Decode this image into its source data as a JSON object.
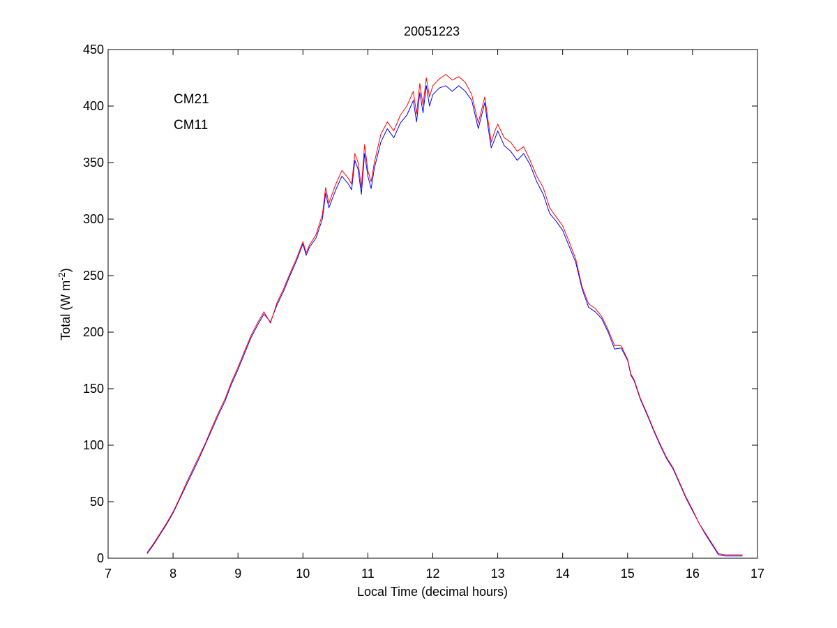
{
  "chart_data": {
    "type": "line",
    "title": "20051223",
    "xlabel": "Local Time (decimal hours)",
    "ylabel_main": "Total (W m",
    "ylabel_sup": "-2",
    "ylabel_close": ")",
    "xlim": [
      7,
      17
    ],
    "ylim": [
      0,
      450
    ],
    "xticks": [
      7,
      8,
      9,
      10,
      11,
      12,
      13,
      14,
      15,
      16,
      17
    ],
    "yticks": [
      0,
      50,
      100,
      150,
      200,
      250,
      300,
      350,
      400,
      450
    ],
    "grid": false,
    "legend_placement": "top-left",
    "series": [
      {
        "name": "CM21",
        "color": "#0000ff",
        "x": [
          7.6,
          7.7,
          7.8,
          7.9,
          8.0,
          8.1,
          8.2,
          8.3,
          8.4,
          8.5,
          8.6,
          8.7,
          8.8,
          8.9,
          9.0,
          9.1,
          9.2,
          9.3,
          9.4,
          9.5,
          9.6,
          9.7,
          9.8,
          9.9,
          10.0,
          10.05,
          10.1,
          10.2,
          10.3,
          10.35,
          10.4,
          10.5,
          10.6,
          10.7,
          10.75,
          10.8,
          10.85,
          10.9,
          10.95,
          11.0,
          11.05,
          11.1,
          11.2,
          11.3,
          11.4,
          11.5,
          11.6,
          11.7,
          11.75,
          11.8,
          11.85,
          11.9,
          11.95,
          12.0,
          12.1,
          12.2,
          12.3,
          12.4,
          12.5,
          12.6,
          12.7,
          12.8,
          12.85,
          12.9,
          12.95,
          13.0,
          13.1,
          13.2,
          13.3,
          13.4,
          13.5,
          13.6,
          13.7,
          13.8,
          13.9,
          14.0,
          14.1,
          14.2,
          14.3,
          14.4,
          14.5,
          14.6,
          14.7,
          14.8,
          14.9,
          15.0,
          15.05,
          15.1,
          15.2,
          15.3,
          15.4,
          15.5,
          15.6,
          15.7,
          15.8,
          15.9,
          16.0,
          16.1,
          16.2,
          16.3,
          16.4,
          16.5,
          16.6,
          16.7,
          16.77
        ],
        "values": [
          4,
          12,
          21,
          30,
          40,
          52,
          64,
          76,
          88,
          101,
          114,
          127,
          139,
          154,
          167,
          181,
          195,
          206,
          216,
          209,
          224,
          236,
          250,
          263,
          278,
          268,
          275,
          283,
          300,
          323,
          310,
          325,
          338,
          331,
          326,
          352,
          344,
          322,
          358,
          338,
          327,
          345,
          368,
          380,
          372,
          385,
          392,
          405,
          386,
          412,
          394,
          418,
          400,
          410,
          416,
          418,
          413,
          418,
          413,
          405,
          380,
          403,
          382,
          363,
          370,
          378,
          365,
          360,
          352,
          358,
          348,
          333,
          322,
          305,
          298,
          290,
          276,
          262,
          238,
          222,
          218,
          212,
          200,
          185,
          186,
          175,
          162,
          157,
          140,
          127,
          113,
          100,
          88,
          79,
          66,
          53,
          42,
          31,
          21,
          12,
          3,
          2,
          2,
          2,
          2
        ]
      },
      {
        "name": "CM11",
        "color": "#ff0000",
        "x": [
          7.6,
          7.7,
          7.8,
          7.9,
          8.0,
          8.1,
          8.2,
          8.3,
          8.4,
          8.5,
          8.6,
          8.7,
          8.8,
          8.9,
          9.0,
          9.1,
          9.2,
          9.3,
          9.4,
          9.5,
          9.6,
          9.7,
          9.8,
          9.9,
          10.0,
          10.05,
          10.1,
          10.2,
          10.3,
          10.35,
          10.4,
          10.5,
          10.6,
          10.7,
          10.75,
          10.8,
          10.85,
          10.9,
          10.95,
          11.0,
          11.05,
          11.1,
          11.2,
          11.3,
          11.4,
          11.5,
          11.6,
          11.7,
          11.75,
          11.8,
          11.85,
          11.9,
          11.95,
          12.0,
          12.1,
          12.2,
          12.3,
          12.4,
          12.5,
          12.6,
          12.7,
          12.8,
          12.85,
          12.9,
          12.95,
          13.0,
          13.1,
          13.2,
          13.3,
          13.4,
          13.5,
          13.6,
          13.7,
          13.8,
          13.9,
          14.0,
          14.1,
          14.2,
          14.3,
          14.4,
          14.5,
          14.6,
          14.7,
          14.8,
          14.9,
          15.0,
          15.05,
          15.1,
          15.2,
          15.3,
          15.4,
          15.5,
          15.6,
          15.7,
          15.8,
          15.9,
          16.0,
          16.1,
          16.2,
          16.3,
          16.4,
          16.5,
          16.6,
          16.7,
          16.77
        ],
        "values": [
          5,
          13,
          22,
          31,
          41,
          53,
          66,
          78,
          90,
          102,
          116,
          129,
          141,
          156,
          169,
          183,
          197,
          208,
          218,
          208,
          226,
          238,
          252,
          265,
          280,
          270,
          277,
          286,
          304,
          328,
          314,
          330,
          343,
          336,
          331,
          358,
          350,
          328,
          366,
          343,
          333,
          350,
          375,
          386,
          378,
          392,
          400,
          413,
          393,
          420,
          401,
          425,
          408,
          418,
          424,
          428,
          423,
          426,
          421,
          410,
          385,
          408,
          388,
          368,
          377,
          384,
          372,
          368,
          360,
          364,
          352,
          338,
          328,
          310,
          302,
          294,
          280,
          265,
          240,
          225,
          221,
          214,
          202,
          188,
          188,
          176,
          163,
          158,
          141,
          128,
          114,
          101,
          89,
          80,
          67,
          54,
          43,
          31,
          22,
          13,
          4,
          3,
          3,
          3,
          3
        ]
      }
    ]
  }
}
